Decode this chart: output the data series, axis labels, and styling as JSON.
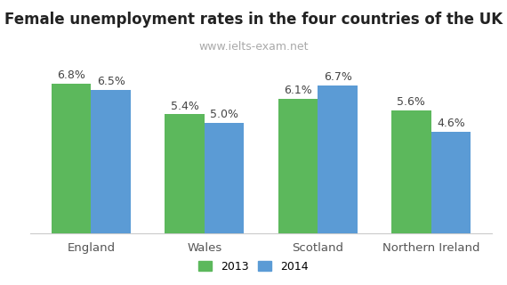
{
  "title": "Female unemployment rates in the four countries of the UK",
  "subtitle": "www.ielts-exam.net",
  "categories": [
    "England",
    "Wales",
    "Scotland",
    "Northern Ireland"
  ],
  "series": {
    "2013": [
      6.8,
      5.4,
      6.1,
      5.6
    ],
    "2014": [
      6.5,
      5.0,
      6.7,
      4.6
    ]
  },
  "bar_color_2013": "#5cb85c",
  "bar_color_2014": "#5b9bd5",
  "bar_width": 0.35,
  "ylim": [
    0,
    8
  ],
  "label_fontsize": 9,
  "title_fontsize": 12,
  "subtitle_fontsize": 9,
  "subtitle_color": "#aaaaaa",
  "tick_label_fontsize": 9.5,
  "legend_fontsize": 9,
  "background_color": "#ffffff"
}
